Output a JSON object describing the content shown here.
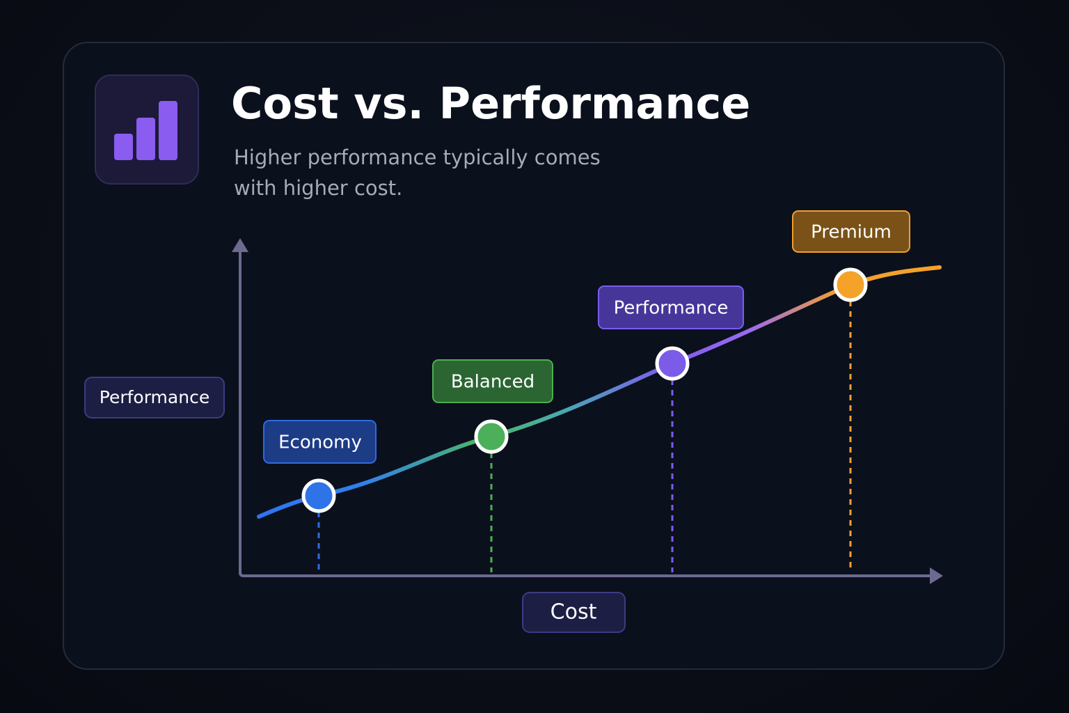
{
  "header": {
    "title": "Cost vs. Performance",
    "subtitle": "Higher performance typically comes with higher cost."
  },
  "axes": {
    "y_label": "Performance",
    "x_label": "Cost"
  },
  "tiers": [
    "Economy",
    "Balanced",
    "Performance",
    "Premium"
  ]
}
